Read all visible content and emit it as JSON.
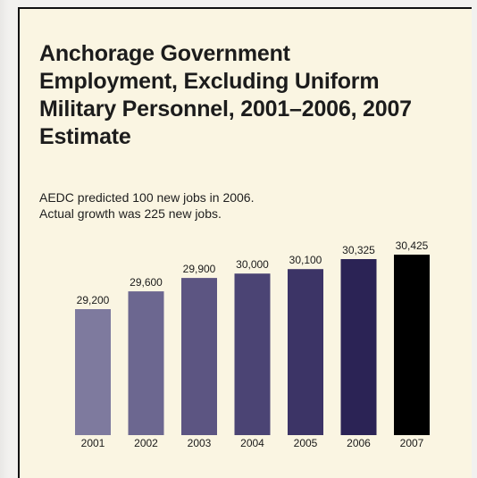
{
  "chart_data": {
    "type": "bar",
    "title": "Anchorage Government Employment, Excluding Uniform Military Personnel, 2001–2006, 2007 Estimate",
    "subtitle_lines": [
      "AEDC predicted 100 new jobs in 2006.",
      "Actual growth was 225 new jobs."
    ],
    "categories": [
      "2001",
      "2002",
      "2003",
      "2004",
      "2005",
      "2006",
      "2007"
    ],
    "values": [
      29200,
      29600,
      29900,
      30000,
      30100,
      30325,
      30425
    ],
    "value_labels": [
      "29,200",
      "29,600",
      "29,900",
      "30,000",
      "30,100",
      "30,325",
      "30,425"
    ],
    "bar_colors": [
      "#7e7a9e",
      "#6c6790",
      "#5c5582",
      "#4b4474",
      "#3c3466",
      "#2b2355",
      "#000000"
    ],
    "xlabel": "",
    "ylabel": "",
    "grid": false,
    "legend": "none"
  }
}
